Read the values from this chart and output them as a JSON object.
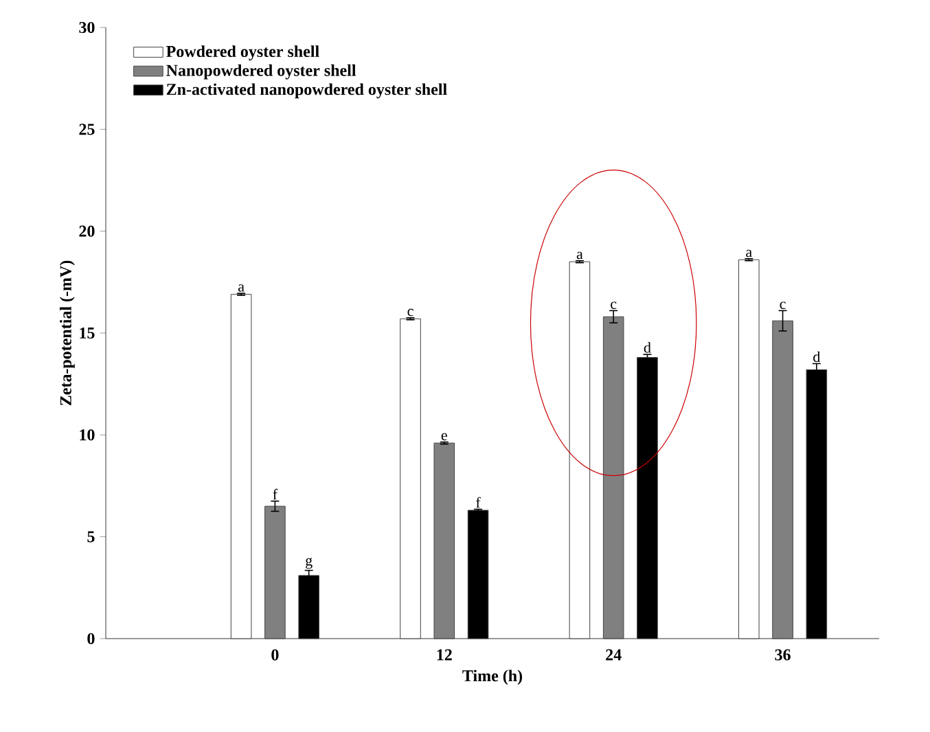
{
  "chart_data": {
    "type": "bar",
    "xlabel": "Time (h)",
    "ylabel": "Zeta-potential (-mV)",
    "categories": [
      "0",
      "12",
      "24",
      "36"
    ],
    "series": [
      {
        "name": "Powdered oyster shell",
        "color": "#ffffff",
        "values": [
          16.9,
          15.7,
          18.5,
          18.6
        ],
        "errors": [
          0.05,
          0.05,
          0.05,
          0.05
        ],
        "value_labels": [
          "a",
          "c",
          "a",
          "a"
        ]
      },
      {
        "name": "Nanopowdered oyster shell",
        "color": "#808080",
        "values": [
          6.5,
          9.6,
          15.8,
          15.6
        ],
        "errors": [
          0.25,
          0.05,
          0.3,
          0.5
        ],
        "value_labels": [
          "f",
          "e",
          "c",
          "c"
        ]
      },
      {
        "name": "Zn-activated nanopowdered oyster shell",
        "color": "#000000",
        "values": [
          3.1,
          6.3,
          13.8,
          13.2
        ],
        "errors": [
          0.25,
          0.05,
          0.15,
          0.3
        ],
        "value_labels": [
          "g",
          "f",
          "d",
          "d"
        ]
      }
    ],
    "ylim": [
      0,
      30
    ],
    "yticks": [
      0,
      5,
      10,
      15,
      20,
      25,
      30
    ],
    "legend": "top left"
  }
}
